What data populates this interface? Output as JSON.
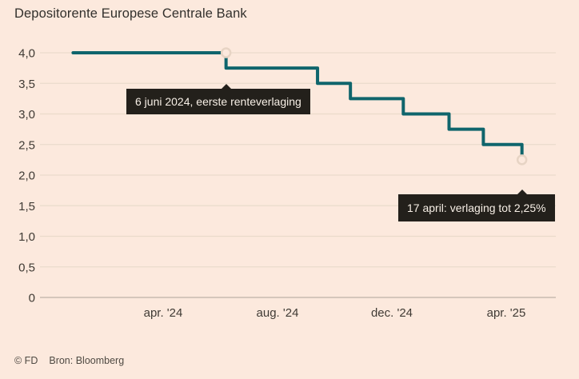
{
  "chart_data": {
    "type": "line",
    "step": "after",
    "title": "Depositorente Europese Centrale Bank",
    "series_name": "depositorente",
    "x_unit": "maanden sinds 1 jan. 2024",
    "ylim": [
      0,
      4
    ],
    "grid": "horizontal",
    "legend": "none",
    "points": [
      {
        "x": -0.15,
        "y": 4.0
      },
      {
        "x": 5.2,
        "y": 3.75,
        "date": "6 juni 2024"
      },
      {
        "x": 8.4,
        "y": 3.5
      },
      {
        "x": 9.55,
        "y": 3.25
      },
      {
        "x": 11.4,
        "y": 3.0
      },
      {
        "x": 13.0,
        "y": 2.75
      },
      {
        "x": 14.2,
        "y": 2.5
      },
      {
        "x": 15.55,
        "y": 2.25,
        "date": "17 april"
      }
    ],
    "markers": [
      {
        "x": 5.2,
        "y": 4.0
      },
      {
        "x": 15.55,
        "y": 2.25
      }
    ],
    "y_ticks": [
      {
        "value": 4,
        "label": "4,0"
      },
      {
        "value": 3.5,
        "label": "3,5"
      },
      {
        "value": 3,
        "label": "3,0"
      },
      {
        "value": 2.5,
        "label": "2,5"
      },
      {
        "value": 2,
        "label": "2,0"
      },
      {
        "value": 1.5,
        "label": "1,5"
      },
      {
        "value": 1,
        "label": "1,0"
      },
      {
        "value": 0.5,
        "label": "0,5"
      },
      {
        "value": 0,
        "label": "0"
      }
    ],
    "x_ticks": [
      {
        "x": 3,
        "label": "apr. '24"
      },
      {
        "x": 7,
        "label": "aug. '24"
      },
      {
        "x": 11,
        "label": "dec. '24"
      },
      {
        "x": 15,
        "label": "apr. '25"
      }
    ],
    "annotations": [
      {
        "text": "6 juni 2024, eerste renteverlaging",
        "points_to": {
          "x": 5.2,
          "y": 4.0
        }
      },
      {
        "text": "17 april: verlaging tot 2,25%",
        "points_to": {
          "x": 15.55,
          "y": 2.25
        }
      }
    ]
  },
  "footer": {
    "copyright": "© FD",
    "source": "Bron: Bloomberg"
  },
  "colors": {
    "background": "#fce9dd",
    "accent_line": "#0f656c",
    "grid": "#eadbcb",
    "zero_line": "#c8bbb0",
    "axis_text": "#3f3a34",
    "callout_bg": "#23201b",
    "callout_text": "#f7efe6",
    "marker_ring": "#e7d4c4"
  }
}
